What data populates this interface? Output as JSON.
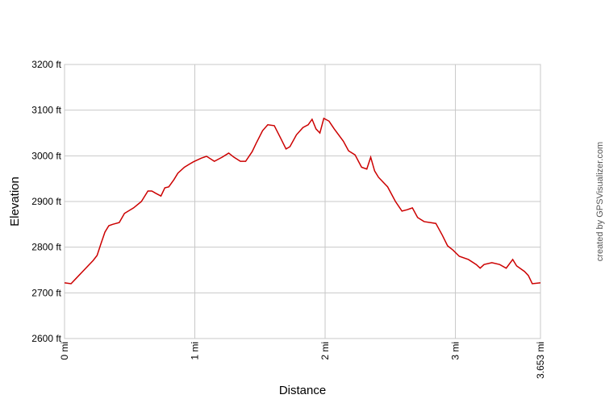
{
  "chart_data": {
    "type": "line",
    "xlabel": "Distance",
    "ylabel": "Elevation",
    "credit": "created by GPSVisualizer.com",
    "color": "#cc0000",
    "grid": true,
    "xlim": [
      0,
      3.653
    ],
    "ylim": [
      2600,
      3200
    ],
    "xticks": [
      {
        "value": 0,
        "label": "0 mi"
      },
      {
        "value": 1,
        "label": "1 mi"
      },
      {
        "value": 2,
        "label": "2 mi"
      },
      {
        "value": 3,
        "label": "3 mi"
      },
      {
        "value": 3.653,
        "label": "3.653 mi"
      }
    ],
    "yticks": [
      {
        "value": 2600,
        "label": "2600 ft"
      },
      {
        "value": 2700,
        "label": "2700 ft"
      },
      {
        "value": 2800,
        "label": "2800 ft"
      },
      {
        "value": 2900,
        "label": "2900 ft"
      },
      {
        "value": 3000,
        "label": "3000 ft"
      },
      {
        "value": 3100,
        "label": "3100 ft"
      },
      {
        "value": 3200,
        "label": "3200 ft"
      }
    ],
    "x": [
      0,
      0.05,
      0.09,
      0.15,
      0.22,
      0.25,
      0.28,
      0.31,
      0.34,
      0.37,
      0.42,
      0.46,
      0.53,
      0.59,
      0.64,
      0.67,
      0.7,
      0.74,
      0.77,
      0.8,
      0.84,
      0.87,
      0.92,
      0.96,
      0.99,
      1.05,
      1.09,
      1.15,
      1.21,
      1.26,
      1.3,
      1.35,
      1.39,
      1.44,
      1.47,
      1.52,
      1.56,
      1.61,
      1.66,
      1.7,
      1.73,
      1.78,
      1.83,
      1.87,
      1.9,
      1.93,
      1.96,
      1.99,
      2.03,
      2.07,
      2.14,
      2.18,
      2.23,
      2.28,
      2.32,
      2.35,
      2.38,
      2.41,
      2.48,
      2.54,
      2.59,
      2.63,
      2.67,
      2.71,
      2.76,
      2.85,
      2.9,
      2.94,
      2.98,
      3.03,
      3.1,
      3.16,
      3.19,
      3.22,
      3.28,
      3.34,
      3.39,
      3.44,
      3.47,
      3.53,
      3.56,
      3.59,
      3.653
    ],
    "values": [
      2722,
      2720,
      2732,
      2750,
      2771,
      2782,
      2808,
      2833,
      2847,
      2850,
      2854,
      2874,
      2886,
      2900,
      2923,
      2923,
      2918,
      2912,
      2930,
      2932,
      2948,
      2962,
      2975,
      2982,
      2987,
      2995,
      2999,
      2988,
      2997,
      3006,
      2997,
      2988,
      2988,
      3009,
      3027,
      3055,
      3068,
      3066,
      3038,
      3015,
      3020,
      3046,
      3062,
      3068,
      3080,
      3059,
      3050,
      3082,
      3076,
      3059,
      3032,
      3011,
      3002,
      2975,
      2971,
      2997,
      2967,
      2953,
      2932,
      2900,
      2879,
      2882,
      2886,
      2865,
      2856,
      2852,
      2826,
      2803,
      2794,
      2780,
      2773,
      2762,
      2754,
      2762,
      2766,
      2762,
      2754,
      2773,
      2759,
      2747,
      2738,
      2720,
      2722
    ]
  }
}
